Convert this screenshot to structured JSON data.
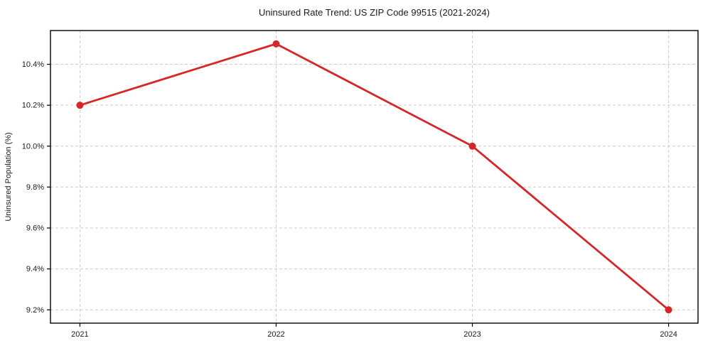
{
  "page": {
    "background": "#ffffff"
  },
  "chart_data": {
    "type": "line",
    "title": "Uninsured Rate Trend: US ZIP Code 99515 (2021-2024)",
    "xlabel": "",
    "ylabel": "Uninsured Population (%)",
    "x": [
      2021,
      2022,
      2023,
      2024
    ],
    "x_tick_labels": [
      "2021",
      "2022",
      "2023",
      "2024"
    ],
    "series": [
      {
        "name": "uninsured-rate",
        "values": [
          10.2,
          10.5,
          10.0,
          9.2
        ]
      }
    ],
    "y_ticks": [
      9.2,
      9.4,
      9.6,
      9.8,
      10.0,
      10.2,
      10.4
    ],
    "y_tick_labels": [
      "9.2%",
      "9.4%",
      "9.6%",
      "9.8%",
      "10.0%",
      "10.2%",
      "10.4%"
    ],
    "ylim": [
      9.135,
      10.565
    ],
    "xlim": [
      2020.85,
      2024.15
    ],
    "grid": true,
    "grid_style": "dashed",
    "legend_position": "none",
    "colors": {
      "line": "#d62728",
      "marker": "#d62728",
      "grid": "#cccccc",
      "frame": "#000000",
      "text": "#1a1a1a"
    },
    "marker_style": "circle",
    "marker_radius": 5,
    "line_width": 2.8
  }
}
